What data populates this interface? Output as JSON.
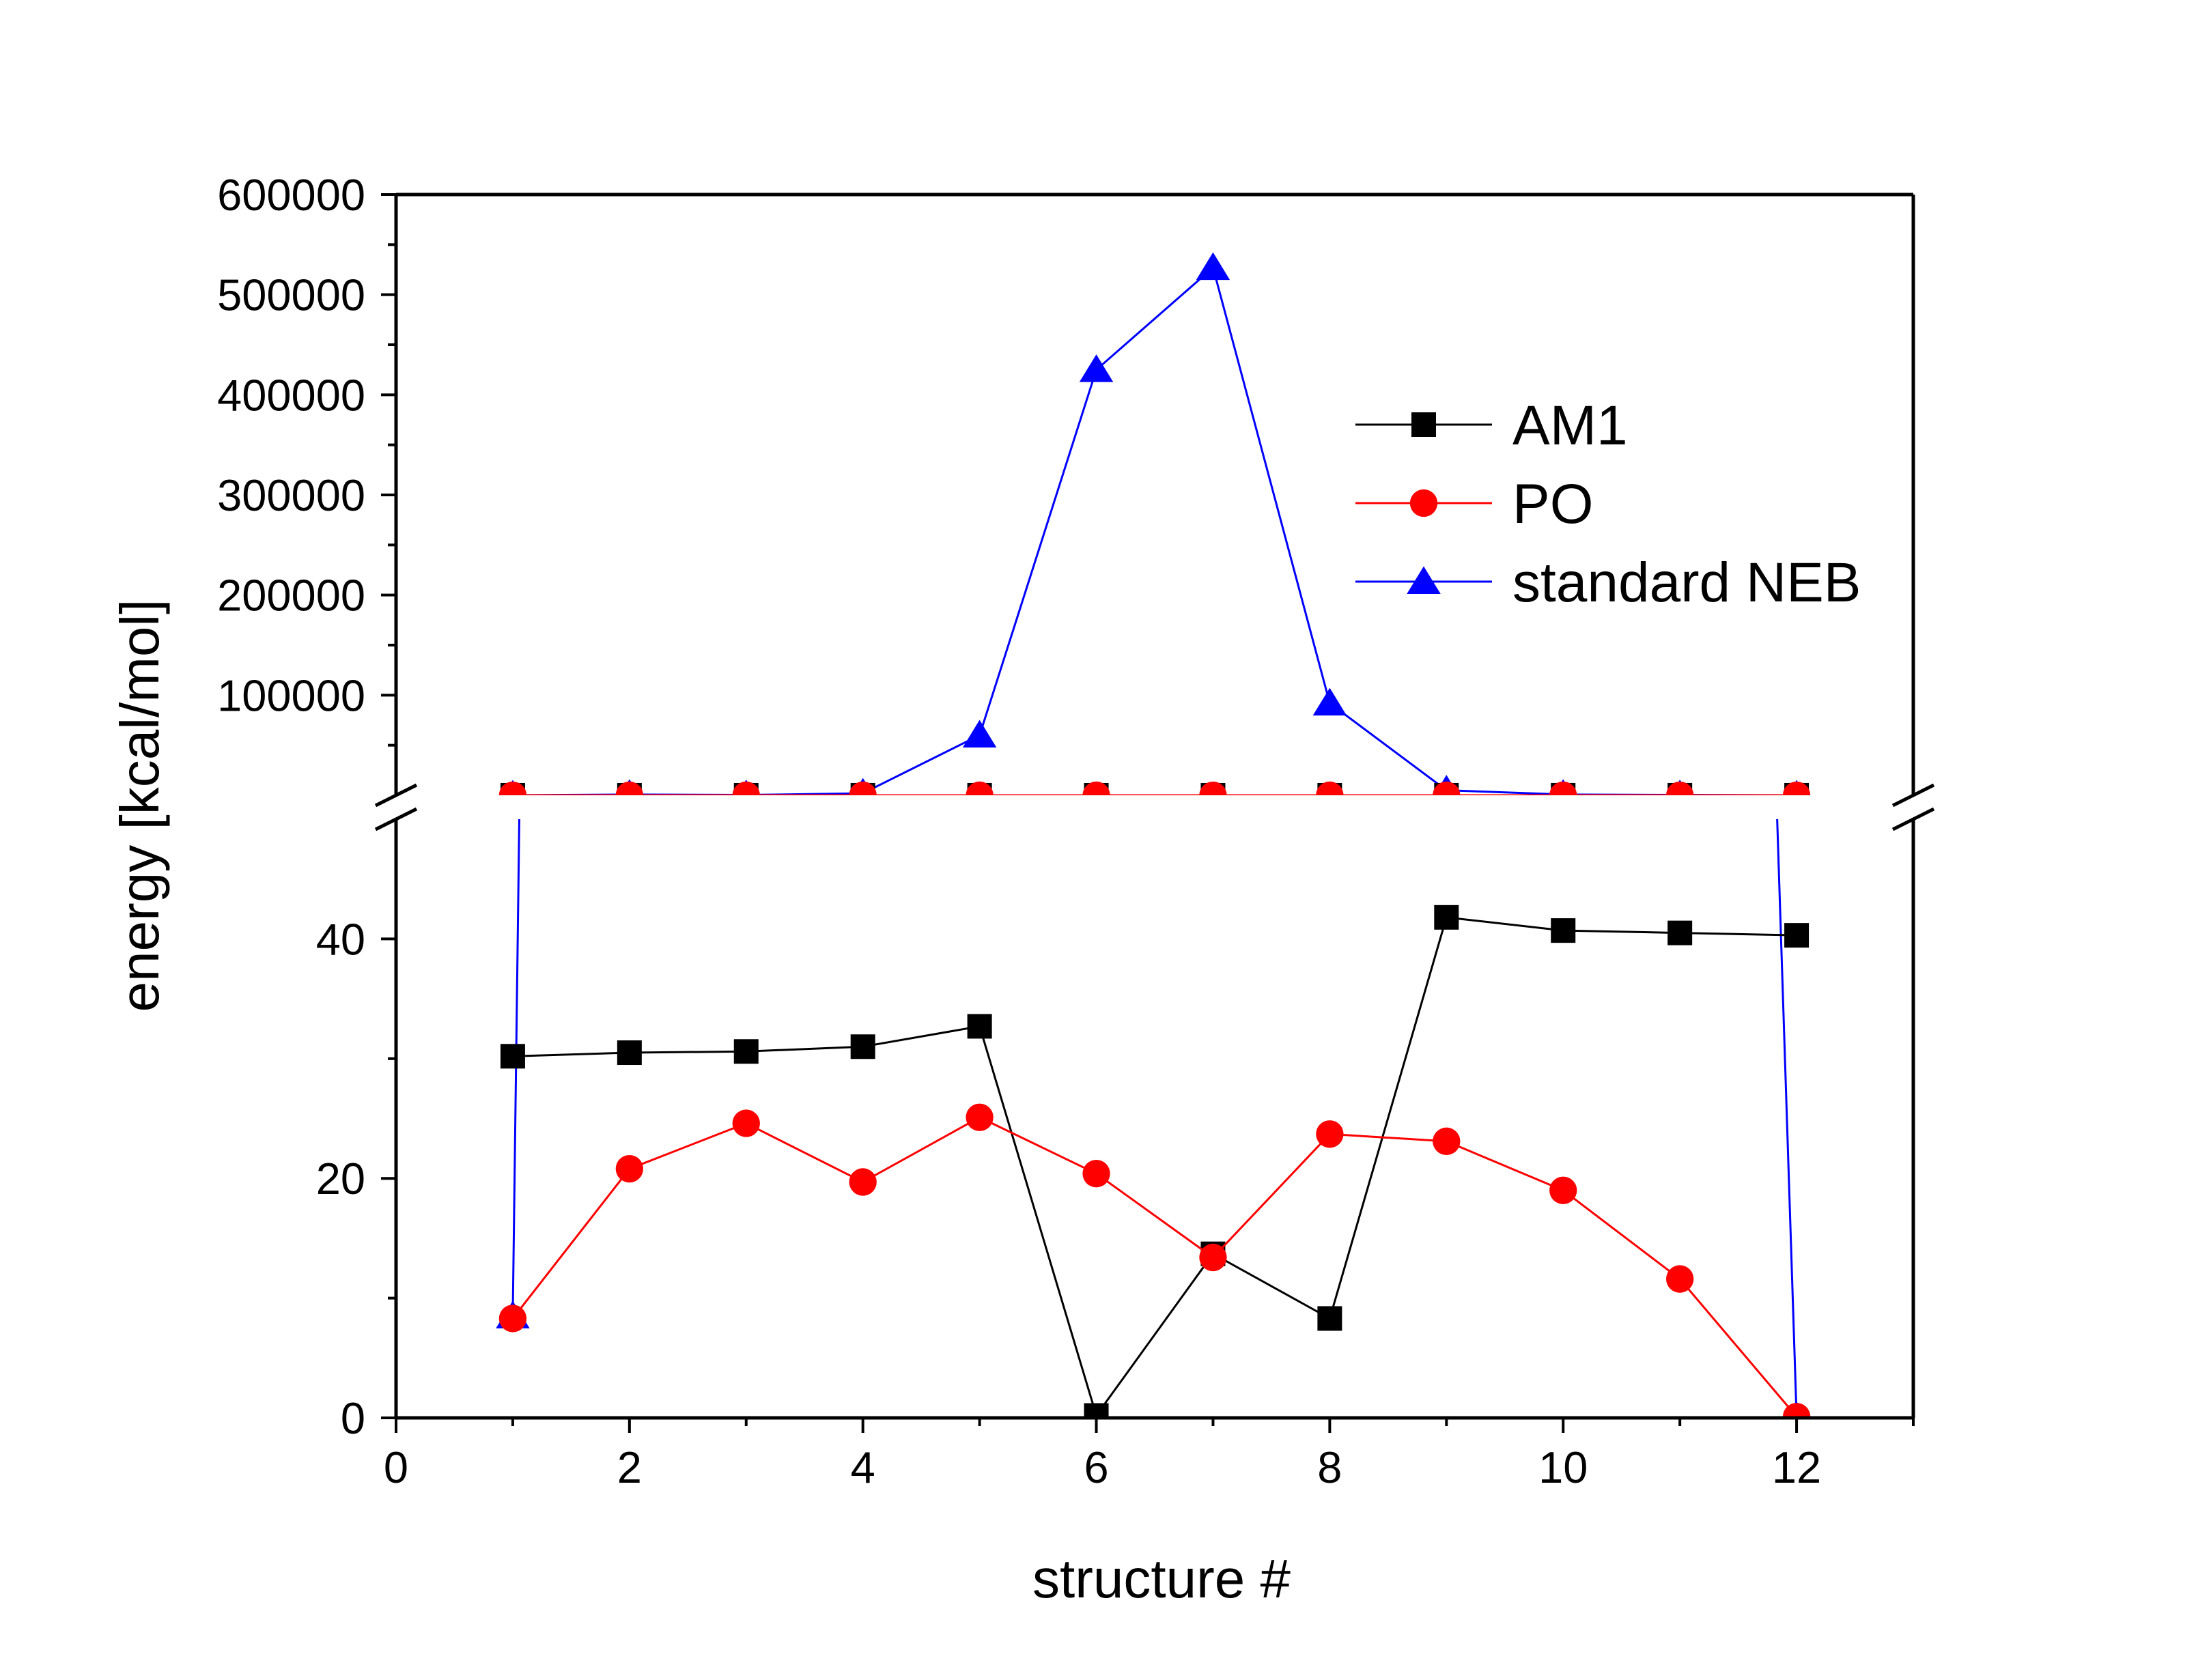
{
  "chart_data": {
    "type": "line",
    "xlabel": "structure #",
    "ylabel": "energy [kcal/mol]",
    "xlim": [
      0,
      13
    ],
    "x_ticks": [
      "0",
      "2",
      "4",
      "6",
      "8",
      "10",
      "12"
    ],
    "broken_y_axis": true,
    "ylim_lower": [
      0,
      50
    ],
    "ylim_upper": [
      0,
      600000
    ],
    "y_ticks_lower": [
      "0",
      "20",
      "40"
    ],
    "y_ticks_upper": [
      "100000",
      "200000",
      "300000",
      "400000",
      "500000",
      "600000"
    ],
    "legend_position": "top-right",
    "grid": false,
    "series": [
      {
        "name": "AM1",
        "color": "#000000",
        "marker": "square",
        "x": [
          1,
          2,
          3,
          4,
          5,
          6,
          7,
          8,
          9,
          10,
          11,
          12
        ],
        "y": [
          30.2,
          30.5,
          30.6,
          31.0,
          32.7,
          0.2,
          13.7,
          8.3,
          41.8,
          40.7,
          40.5,
          40.3
        ]
      },
      {
        "name": "PO",
        "color": "#ff0000",
        "marker": "circle",
        "x": [
          1,
          2,
          3,
          4,
          5,
          6,
          7,
          8,
          9,
          10,
          11,
          12
        ],
        "y": [
          8.3,
          20.8,
          24.6,
          19.7,
          25.1,
          20.4,
          13.4,
          23.7,
          23.1,
          19.0,
          11.6,
          0.1
        ]
      },
      {
        "name": "standard NEB",
        "color": "#0000ff",
        "marker": "triangle",
        "x": [
          1,
          2,
          3,
          4,
          5,
          6,
          7,
          8,
          9,
          10,
          11,
          12
        ],
        "y": [
          8.5,
          750,
          300,
          2000,
          60000,
          425000,
          527000,
          92000,
          5000,
          800,
          300,
          0.1
        ]
      }
    ]
  }
}
